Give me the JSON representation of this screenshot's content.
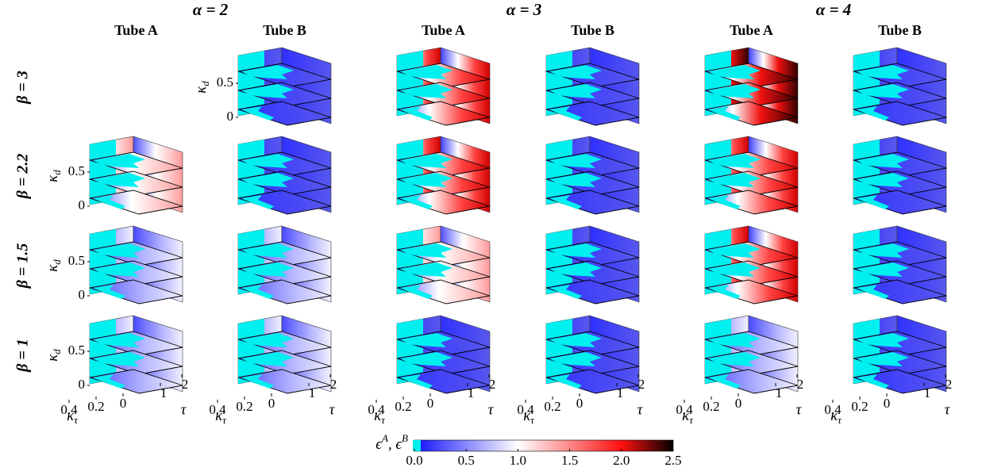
{
  "chart_data": {
    "type": "slice3d",
    "column_groups": [
      "α = 2",
      "α = 3",
      "α = 4"
    ],
    "columns": [
      "Tube A",
      "Tube B"
    ],
    "rows": [
      "β = 3",
      "β = 2.2",
      "β = 1.5",
      "β = 1"
    ],
    "kappa_d": {
      "label": [
        "κ",
        "d"
      ],
      "ticks": [
        0,
        0.5
      ]
    },
    "kappa_tau": {
      "label": [
        "κ",
        "τ"
      ],
      "ticks": [
        0.4,
        0.2,
        0
      ]
    },
    "tau": {
      "label": "τ",
      "ticks": [
        0,
        1,
        2
      ]
    },
    "colorbar": {
      "label": [
        "ϵ",
        "A",
        ", ϵ",
        "B"
      ],
      "clim": [
        0,
        2.5
      ],
      "ticks": [
        {
          "value": 0,
          "label": "0.0"
        },
        0.5,
        {
          "value": 1,
          "label": "1.0"
        },
        1.5,
        {
          "value": 2,
          "label": "2.0"
        },
        2.5
      ],
      "colors": [
        "#1010ff",
        "#ffffff",
        "#ff1010",
        "#000000"
      ]
    }
  }
}
